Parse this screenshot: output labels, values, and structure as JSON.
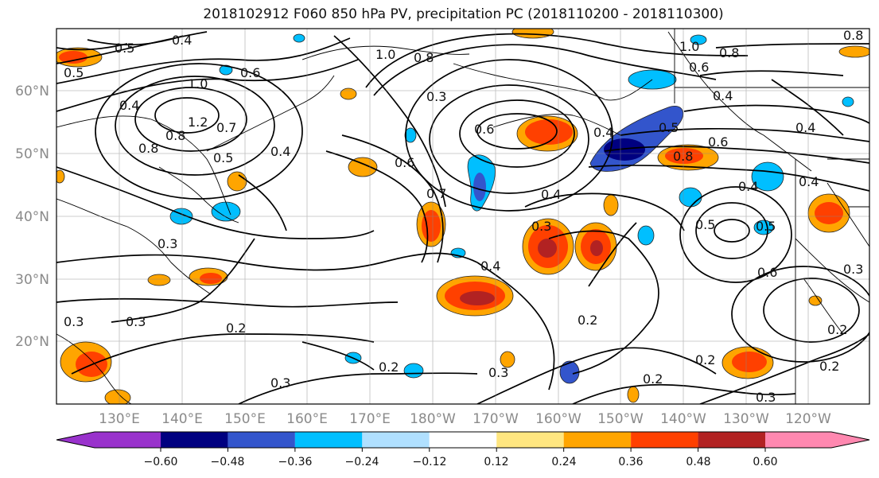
{
  "title": "2018102912 F060 850 hPa PV, precipitation PC (2018110200 - 2018110300)",
  "lat_labels": [
    "60°N",
    "50°N",
    "40°N",
    "30°N",
    "20°N"
  ],
  "lon_labels": [
    "130°E",
    "140°E",
    "150°E",
    "160°E",
    "170°E",
    "180°W",
    "170°W",
    "160°W",
    "150°W",
    "140°W",
    "130°W",
    "120°W"
  ],
  "colorbar": {
    "ticks": [
      "−0.60",
      "−0.48",
      "−0.36",
      "−0.24",
      "−0.12",
      "0.12",
      "0.24",
      "0.36",
      "0.48",
      "0.60"
    ],
    "colors": [
      "#9932cc",
      "#000080",
      "#3355cc",
      "#00bfff",
      "#b0e0ff",
      "#ffffff",
      "#ffe680",
      "#ffa500",
      "#ff4000",
      "#b22222",
      "#ff88b0"
    ]
  },
  "contour_labels": [
    {
      "text": "0.5"
    },
    {
      "text": "0.4"
    },
    {
      "text": "0.5"
    },
    {
      "text": "0.6"
    },
    {
      "text": "1.0"
    },
    {
      "text": "0.4"
    },
    {
      "text": "1.2"
    },
    {
      "text": "0.8"
    },
    {
      "text": "0.7"
    },
    {
      "text": "0.5"
    },
    {
      "text": "0.8"
    },
    {
      "text": "0.3"
    },
    {
      "text": "1.0"
    },
    {
      "text": "0.8"
    },
    {
      "text": "0.3"
    },
    {
      "text": "0.6"
    },
    {
      "text": "0.7"
    },
    {
      "text": "0.6"
    },
    {
      "text": "0.4"
    },
    {
      "text": "0.3"
    },
    {
      "text": "0.4"
    },
    {
      "text": "0.3"
    },
    {
      "text": "0.2"
    },
    {
      "text": "0.2"
    },
    {
      "text": "0.3"
    },
    {
      "text": "0.3"
    },
    {
      "text": "0.2"
    },
    {
      "text": "0.2"
    },
    {
      "text": "0.2"
    },
    {
      "text": "0.4"
    },
    {
      "text": "0.5"
    },
    {
      "text": "0.8"
    },
    {
      "text": "0.6"
    },
    {
      "text": "0.4"
    },
    {
      "text": "0.4"
    },
    {
      "text": "0.5"
    },
    {
      "text": "0.5"
    },
    {
      "text": "0.6"
    },
    {
      "text": "0.3"
    },
    {
      "text": "0.2"
    },
    {
      "text": "0.3"
    },
    {
      "text": "0.6"
    },
    {
      "text": "0.8"
    },
    {
      "text": "1.0"
    },
    {
      "text": "0.8"
    },
    {
      "text": "0.4"
    },
    {
      "text": "0.4"
    },
    {
      "text": "0.4"
    },
    {
      "text": "0.2"
    },
    {
      "text": "0.3"
    }
  ]
}
